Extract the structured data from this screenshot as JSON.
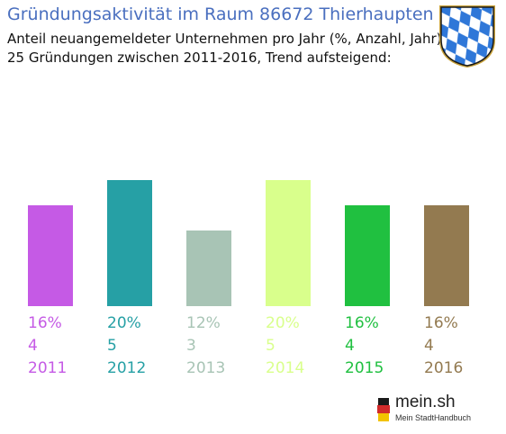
{
  "header": {
    "title": "Gründungsaktivität im Raum 86672 Thierhaupten",
    "subtitle_1": "Anteil neuangemeldeter Unternehmen pro Jahr (%, Anzahl, Jahr)",
    "subtitle_2": "25 Gründungen zwischen 2011-2016, Trend aufsteigend:"
  },
  "crest": {
    "icon": "bavarian-coat-of-arms-icon"
  },
  "logo": {
    "name": "mein.sh",
    "tagline": "Mein StadtHandbuch",
    "icon": "germany-map-icon"
  },
  "chart_data": {
    "type": "bar",
    "title": "Gründungsaktivität im Raum 86672 Thierhaupten",
    "categories": [
      "2011",
      "2012",
      "2013",
      "2014",
      "2015",
      "2016"
    ],
    "values": [
      4,
      5,
      3,
      5,
      4,
      4
    ],
    "percent_labels": [
      "16%",
      "20%",
      "12%",
      "20%",
      "16%",
      "16%"
    ],
    "count_labels": [
      "4",
      "5",
      "3",
      "5",
      "4",
      "4"
    ],
    "colors": [
      "#c55ae5",
      "#26a0a5",
      "#a8c4b5",
      "#d9ff8c",
      "#20c040",
      "#937a50"
    ],
    "ylim": [
      0,
      5
    ],
    "grid": false,
    "legend": "none"
  }
}
